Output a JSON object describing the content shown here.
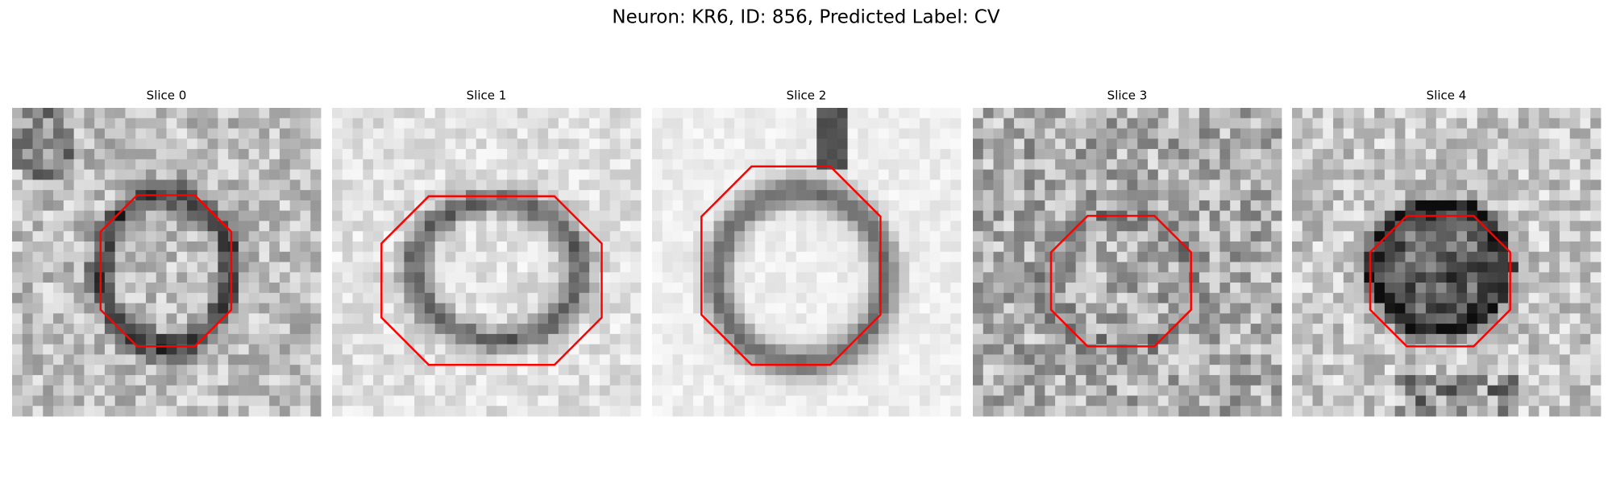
{
  "title": "Neuron: KR6, ID: 856, Predicted Label: CV",
  "panels": [
    {
      "title": "Slice 0"
    },
    {
      "title": "Slice 1"
    },
    {
      "title": "Slice 2"
    },
    {
      "title": "Slice 3"
    },
    {
      "title": "Slice 4"
    }
  ]
}
